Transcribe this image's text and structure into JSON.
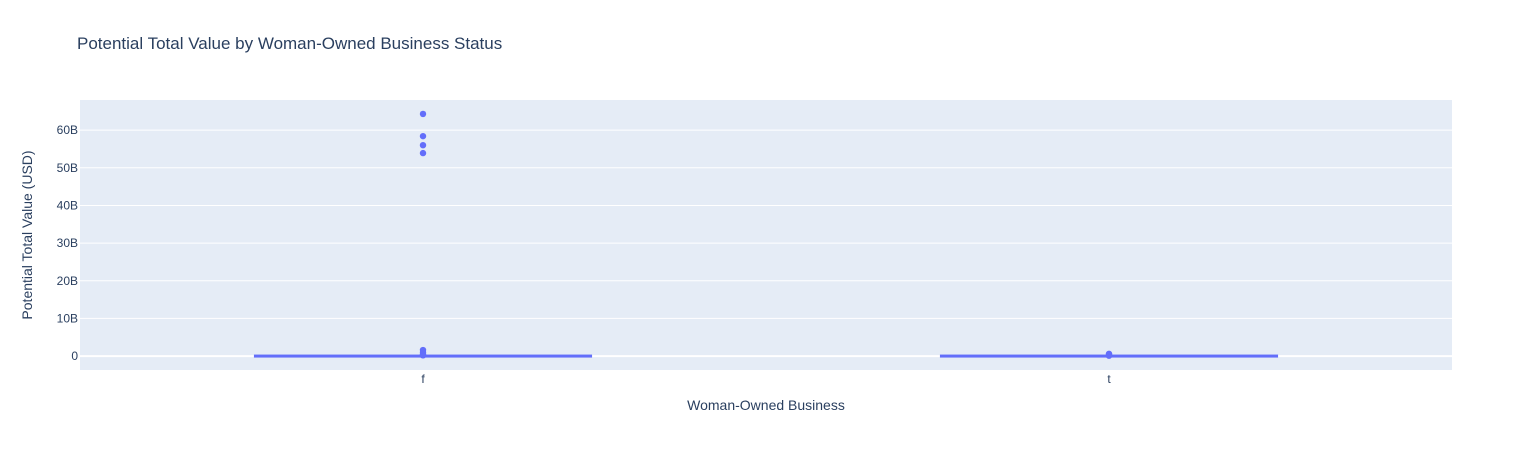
{
  "chart_data": {
    "type": "box",
    "title": "Potential Total Value by Woman-Owned Business Status",
    "xlabel": "Woman-Owned Business",
    "ylabel": "Potential Total Value (USD)",
    "categories": [
      "f",
      "t"
    ],
    "ylim": [
      -3700000000,
      68000000000
    ],
    "yticks": [
      0,
      10000000000,
      20000000000,
      30000000000,
      40000000000,
      50000000000,
      60000000000
    ],
    "ytick_labels": [
      "0",
      "10B",
      "20B",
      "30B",
      "40B",
      "50B",
      "60B"
    ],
    "grid": true,
    "series": [
      {
        "category": "f",
        "box": {
          "q1": 0,
          "median": 0,
          "q3": 0,
          "lowerfence": 0,
          "upperfence": 0
        },
        "outliers": [
          64300000000,
          58400000000,
          56000000000,
          53900000000,
          1600000000,
          1000000000,
          500000000,
          200000000
        ]
      },
      {
        "category": "t",
        "box": {
          "q1": 0,
          "median": 0,
          "q3": 0,
          "lowerfence": 0,
          "upperfence": 0
        },
        "outliers": [
          600000000,
          400000000,
          200000000,
          100000000
        ]
      }
    ],
    "colors": {
      "series": "#636efa",
      "plot_bg": "#e5ecf6",
      "grid": "#ffffff",
      "text": "#2a3f5f"
    }
  }
}
